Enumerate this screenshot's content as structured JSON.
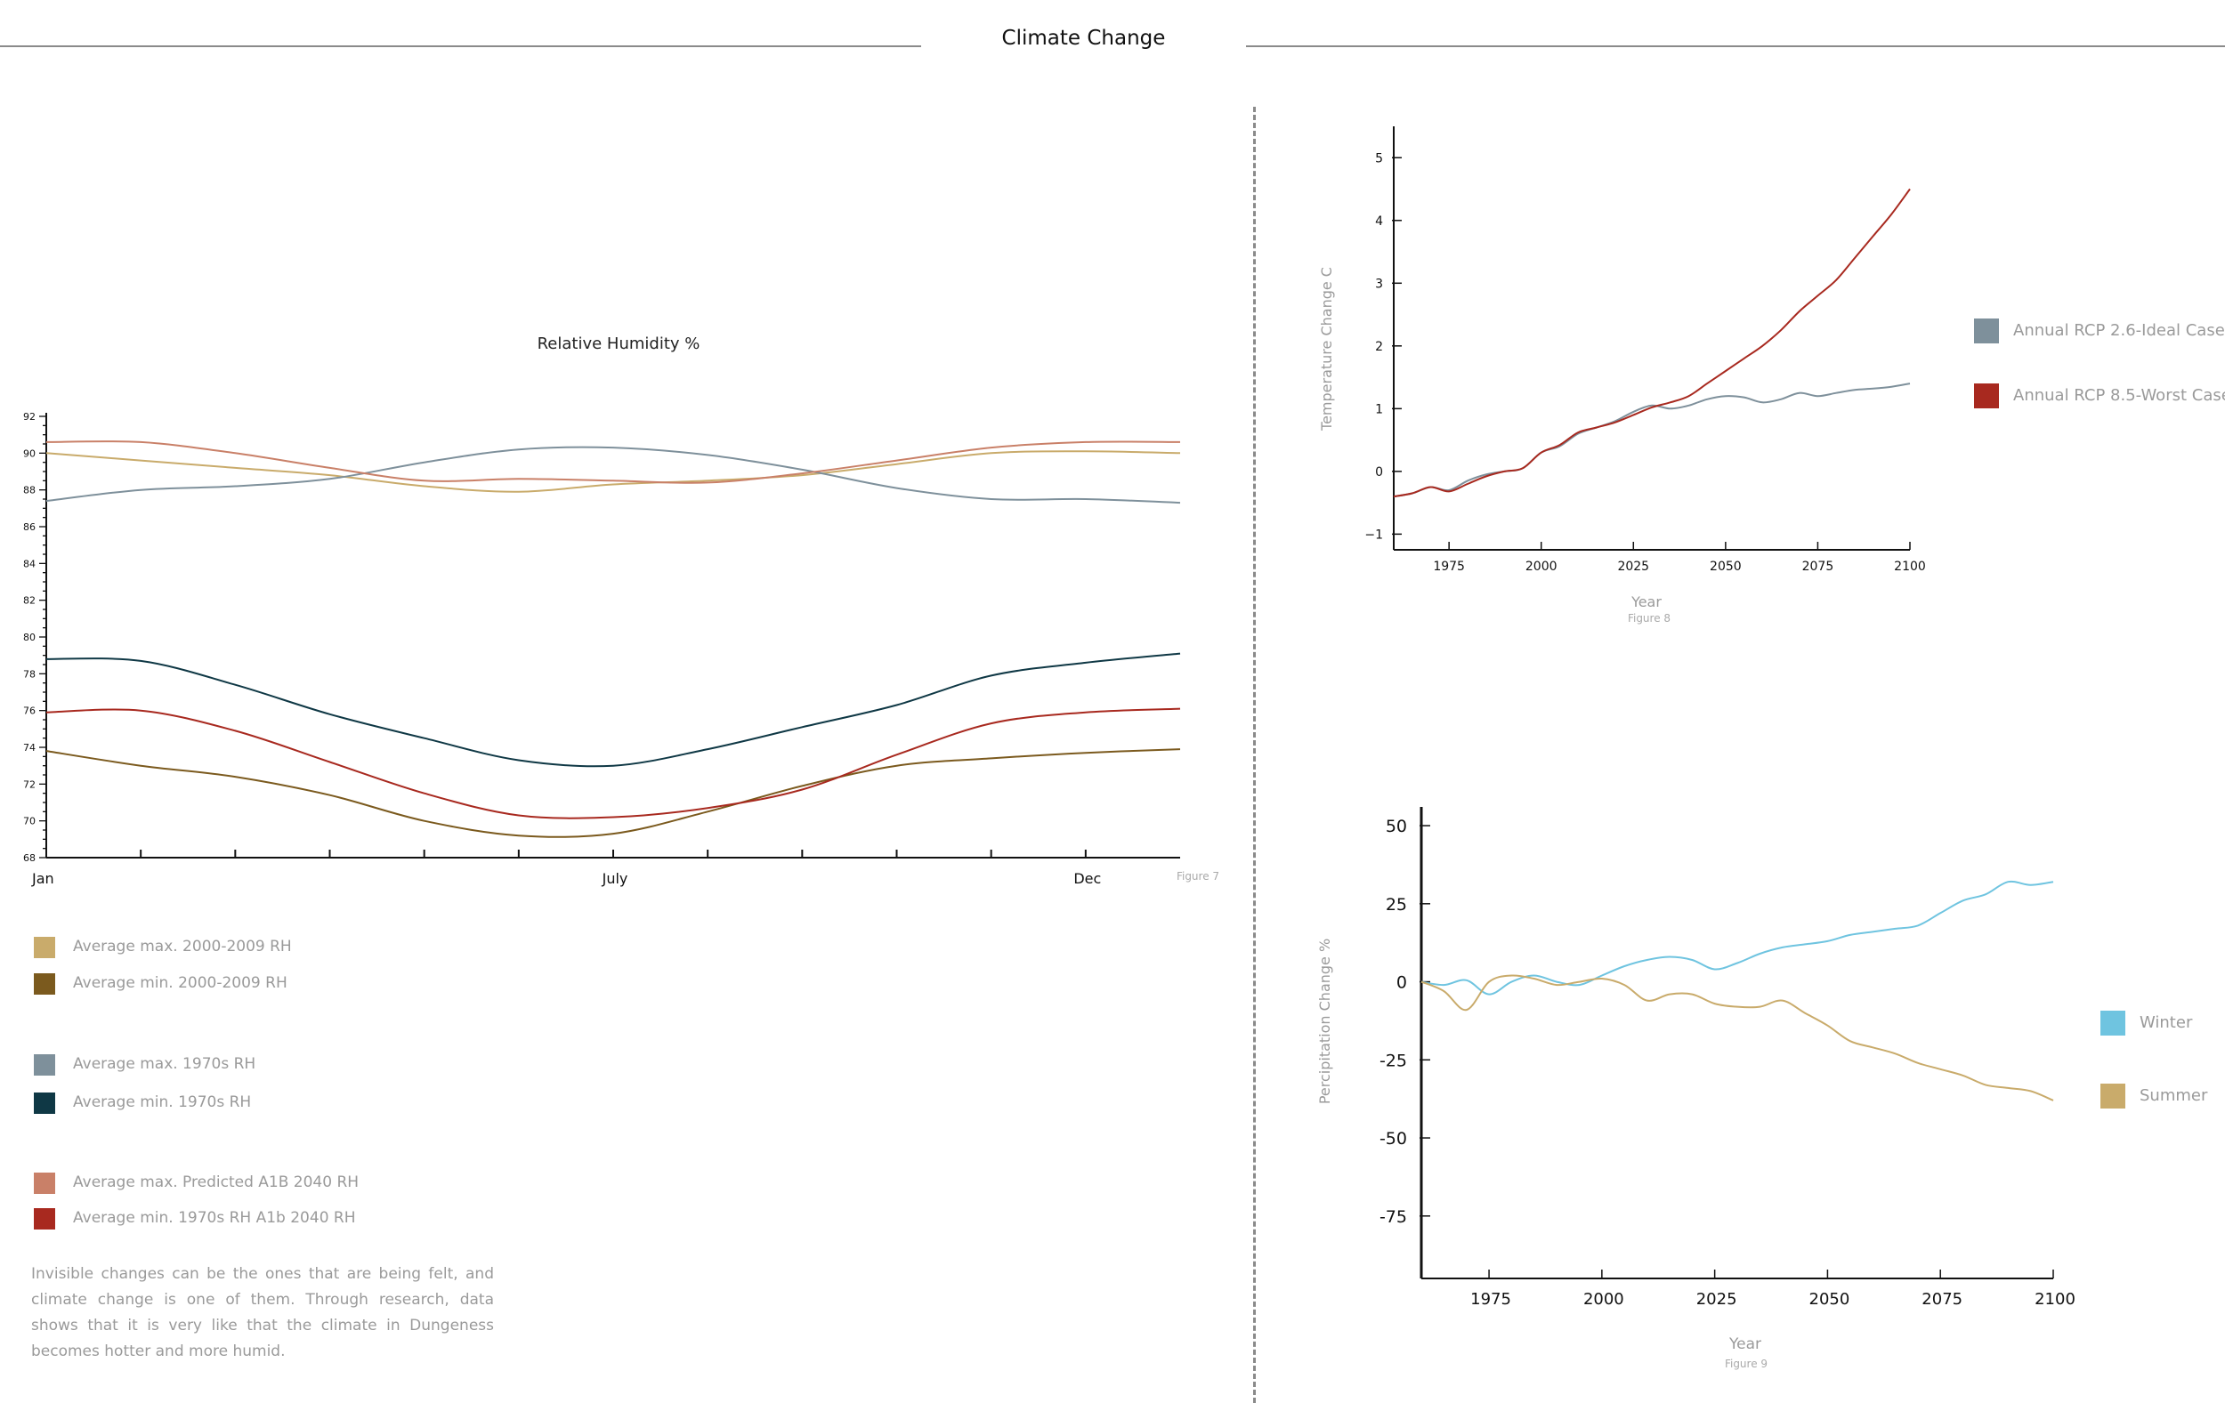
{
  "page_title": "Climate Change",
  "paragraph": "Invisible changes can be the ones that are being felt, and climate change is one of them. Through research, data shows that it is very like that the climate in Dungeness becomes hotter and more humid.",
  "legend_left": [
    {
      "label": "Average max. 2000-2009 RH",
      "color": "#c9ab6b"
    },
    {
      "label": "Average min. 2000-2009 RH",
      "color": "#7b5a1e"
    },
    {
      "label": "Average max. 1970s RH",
      "color": "#7e909b"
    },
    {
      "label": "Average min. 1970s RH",
      "color": "#0f3845"
    },
    {
      "label": "Average max. Predicted A1B 2040  RH",
      "color": "#c98068"
    },
    {
      "label": "Average min. 1970s RH A1b 2040 RH",
      "color": "#a8291f"
    }
  ],
  "legend_fig8": [
    {
      "label": "Annual RCP 2.6-Ideal Case",
      "color": "#7e909b"
    },
    {
      "label": "Annual RCP 8.5-Worst Case",
      "color": "#a8291f"
    }
  ],
  "legend_fig9": [
    {
      "label": "Winter",
      "color": "#6fc4e0"
    },
    {
      "label": "Summer",
      "color": "#c9ab6b"
    }
  ],
  "chart_data": [
    {
      "type": "line",
      "title": "Relative Humidity %",
      "figure_label": "Figure 7",
      "xlabel": "",
      "ylabel": "",
      "x_tick_labels": [
        {
          "label": "Jan",
          "month": 0
        },
        {
          "label": "July",
          "month": 6
        },
        {
          "label": "Dec",
          "month": 11
        }
      ],
      "xlim": [
        0,
        12
      ],
      "ylim": [
        68,
        92
      ],
      "y_ticks": [
        68,
        70,
        72,
        74,
        76,
        78,
        80,
        82,
        84,
        86,
        88,
        90,
        92
      ],
      "x": [
        0,
        1,
        2,
        3,
        4,
        5,
        6,
        7,
        8,
        9,
        10,
        11,
        12
      ],
      "series": [
        {
          "name": "Average max. 2000-2009 RH",
          "color": "#c9ab6b",
          "values": [
            90.0,
            89.6,
            89.2,
            88.8,
            88.2,
            87.9,
            88.3,
            88.5,
            88.8,
            89.4,
            90.0,
            90.1,
            90.0
          ]
        },
        {
          "name": "Average min. 2000-2009 RH",
          "color": "#7b5a1e",
          "values": [
            73.8,
            73.0,
            72.4,
            71.4,
            70.0,
            69.2,
            69.3,
            70.5,
            71.9,
            73.0,
            73.4,
            73.7,
            73.9
          ]
        },
        {
          "name": "Average max. 1970s RH",
          "color": "#7e909b",
          "values": [
            87.4,
            88.0,
            88.2,
            88.6,
            89.5,
            90.2,
            90.3,
            89.9,
            89.1,
            88.1,
            87.5,
            87.5,
            87.3
          ]
        },
        {
          "name": "Average min. 1970s RH",
          "color": "#0f3845",
          "values": [
            78.8,
            78.7,
            77.4,
            75.8,
            74.5,
            73.3,
            73.0,
            73.9,
            75.1,
            76.3,
            77.9,
            78.6,
            79.1
          ]
        },
        {
          "name": "Average max. Predicted A1B 2040  RH",
          "color": "#c98068",
          "values": [
            90.6,
            90.6,
            90.0,
            89.2,
            88.5,
            88.6,
            88.5,
            88.4,
            88.9,
            89.6,
            90.3,
            90.6,
            90.6
          ]
        },
        {
          "name": "Average min. 1970s RH A1b 2040 RH",
          "color": "#a8291f",
          "values": [
            75.9,
            76.0,
            74.9,
            73.2,
            71.5,
            70.3,
            70.2,
            70.7,
            71.7,
            73.6,
            75.3,
            75.9,
            76.1
          ]
        }
      ]
    },
    {
      "type": "line",
      "title": "",
      "figure_label": "Figure 8",
      "xlabel": "Year",
      "ylabel": "Temperature Change C",
      "xlim": [
        1960,
        2100
      ],
      "ylim": [
        -1.25,
        5.5
      ],
      "x_ticks": [
        1975,
        2000,
        2025,
        2050,
        2075,
        2100
      ],
      "y_ticks": [
        -1,
        0,
        1,
        2,
        3,
        4,
        5
      ],
      "x": [
        1960,
        1965,
        1970,
        1975,
        1980,
        1985,
        1990,
        1995,
        2000,
        2005,
        2010,
        2015,
        2020,
        2025,
        2030,
        2035,
        2040,
        2045,
        2050,
        2055,
        2060,
        2065,
        2070,
        2075,
        2080,
        2085,
        2090,
        2095,
        2100
      ],
      "series": [
        {
          "name": "Annual RCP 2.6-Ideal Case",
          "color": "#7e909b",
          "values": [
            -0.4,
            -0.35,
            -0.25,
            -0.3,
            -0.15,
            -0.05,
            0.0,
            0.05,
            0.3,
            0.4,
            0.6,
            0.7,
            0.8,
            0.95,
            1.05,
            1.0,
            1.05,
            1.15,
            1.2,
            1.18,
            1.1,
            1.15,
            1.25,
            1.2,
            1.25,
            1.3,
            1.32,
            1.35,
            1.4
          ]
        },
        {
          "name": "Annual RCP 8.5-Worst Case",
          "color": "#a8291f",
          "values": [
            -0.4,
            -0.35,
            -0.25,
            -0.32,
            -0.2,
            -0.08,
            0.0,
            0.05,
            0.3,
            0.42,
            0.62,
            0.7,
            0.78,
            0.9,
            1.02,
            1.1,
            1.2,
            1.4,
            1.6,
            1.8,
            2.0,
            2.25,
            2.55,
            2.8,
            3.05,
            3.4,
            3.75,
            4.1,
            4.5
          ]
        }
      ]
    },
    {
      "type": "line",
      "title": "",
      "figure_label": "Figure 9",
      "xlabel": "Year",
      "ylabel": "Percipitation Change %",
      "xlim": [
        1960,
        2100
      ],
      "ylim": [
        -95,
        56
      ],
      "x_ticks": [
        1975,
        2000,
        2025,
        2050,
        2075,
        2100
      ],
      "y_ticks": [
        50,
        25,
        0,
        -25,
        -50,
        -75
      ],
      "x": [
        1960,
        1965,
        1970,
        1975,
        1980,
        1985,
        1990,
        1995,
        2000,
        2005,
        2010,
        2015,
        2020,
        2025,
        2030,
        2035,
        2040,
        2045,
        2050,
        2055,
        2060,
        2065,
        2070,
        2075,
        2080,
        2085,
        2090,
        2095,
        2100
      ],
      "series": [
        {
          "name": "Winter",
          "color": "#6fc4e0",
          "values": [
            0,
            -1,
            0.5,
            -4,
            0,
            2,
            0,
            -1,
            2,
            5,
            7,
            8,
            7,
            4,
            6,
            9,
            11,
            12,
            13,
            15,
            16,
            17,
            18,
            22,
            26,
            28,
            32,
            31,
            32
          ]
        },
        {
          "name": "Summer",
          "color": "#c9ab6b",
          "values": [
            0,
            -3,
            -9,
            0,
            2,
            1,
            -1,
            0,
            1,
            -1,
            -6,
            -4,
            -4,
            -7,
            -8,
            -8,
            -6,
            -10,
            -14,
            -19,
            -21,
            -23,
            -26,
            -28,
            -30,
            -33,
            -34,
            -35,
            -38
          ]
        }
      ]
    }
  ]
}
